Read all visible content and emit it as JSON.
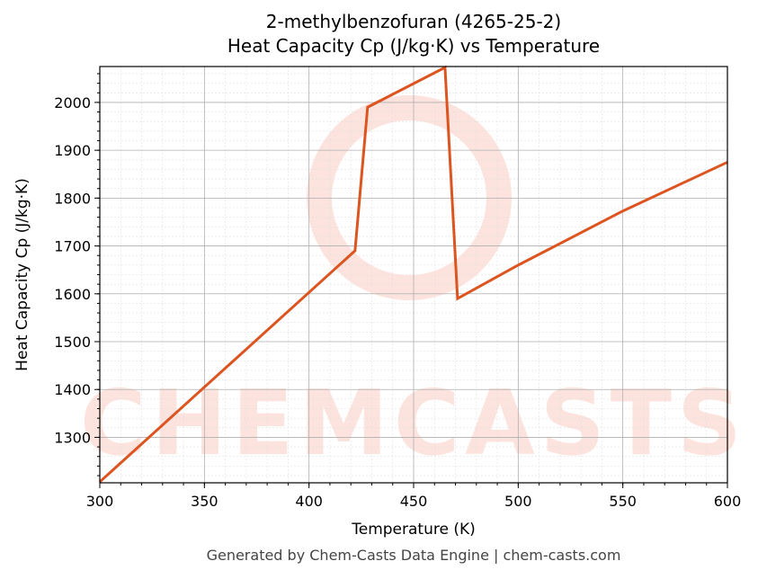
{
  "header": {
    "title_line1": "2-methylbenzofuran (4265-25-2)",
    "title_line2": "Heat Capacity Cp (J/kg·K) vs Temperature"
  },
  "footer": {
    "text": "Generated by Chem-Casts Data Engine | chem-casts.com"
  },
  "watermark": {
    "text": "CHEMCASTS"
  },
  "colors": {
    "line": "#dc5520",
    "watermark": "#fde3dd",
    "grid_major": "#b0b0b0",
    "grid_minor": "#e0e0e0"
  },
  "chart_data": {
    "type": "line",
    "title": "2-methylbenzofuran (4265-25-2)\nHeat Capacity Cp (J/kg·K) vs Temperature",
    "xlabel": "Temperature (K)",
    "ylabel": "Heat Capacity Cp (J/kg·K)",
    "xlim": [
      300,
      600
    ],
    "ylim": [
      1205,
      2075
    ],
    "xticks": [
      300,
      350,
      400,
      450,
      500,
      550,
      600
    ],
    "yticks": [
      1300,
      1400,
      1500,
      1600,
      1700,
      1800,
      1900,
      2000
    ],
    "grid": true,
    "legend": null,
    "series": [
      {
        "name": "Cp",
        "x": [
          300,
          422,
          428,
          465,
          471,
          500,
          550,
          600
        ],
        "y": [
          1207,
          1690,
          1990,
          2073,
          1590,
          1660,
          1773,
          1875
        ]
      }
    ]
  }
}
